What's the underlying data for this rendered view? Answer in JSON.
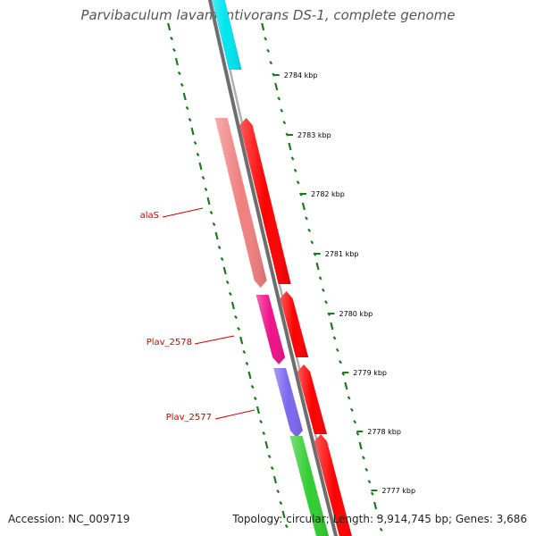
{
  "title": "Parvibaculum lavamentivorans DS-1, complete genome",
  "footer": {
    "accession_label": "Accession:",
    "accession": "NC_009719",
    "topology_label": "Topology:",
    "topology": "circular",
    "length_label": "Length:",
    "length": "3,914,745 bp",
    "genes_label": "Genes:",
    "genes": "3,686"
  },
  "map": {
    "colors": {
      "backbone": "#7a7a7a",
      "tick": "#1f7a1f",
      "label_line": "#cc0000",
      "gene_label": "#cc0000",
      "scale_text": "#000000"
    },
    "scale_labels": [
      "2784 kbp",
      "2783 kbp",
      "2782 kbp",
      "2781 kbp",
      "2780 kbp",
      "2779 kbp",
      "2778 kbp",
      "2777 kbp"
    ],
    "gene_labels": [
      "alaS",
      "Plav_2578",
      "Plav_2577"
    ],
    "features": [
      {
        "track": "inner",
        "color": "#0000ee",
        "strand": "+"
      },
      {
        "track": "inner",
        "color": "#00e5ee",
        "strand": "+"
      },
      {
        "track": "outer",
        "color": "#f08080",
        "strand": "-"
      },
      {
        "track": "inner",
        "color": "#ff0000",
        "strand": "+"
      },
      {
        "track": "outer",
        "color": "#ee1289",
        "strand": "-"
      },
      {
        "track": "inner",
        "color": "#ff0000",
        "strand": "+"
      },
      {
        "track": "outer",
        "color": "#7b68ee",
        "strand": "-"
      },
      {
        "track": "inner",
        "color": "#ff0000",
        "strand": "+"
      },
      {
        "track": "outer",
        "color": "#32cd32",
        "strand": "-"
      },
      {
        "track": "inner",
        "color": "#ff0000",
        "strand": "+"
      }
    ]
  }
}
